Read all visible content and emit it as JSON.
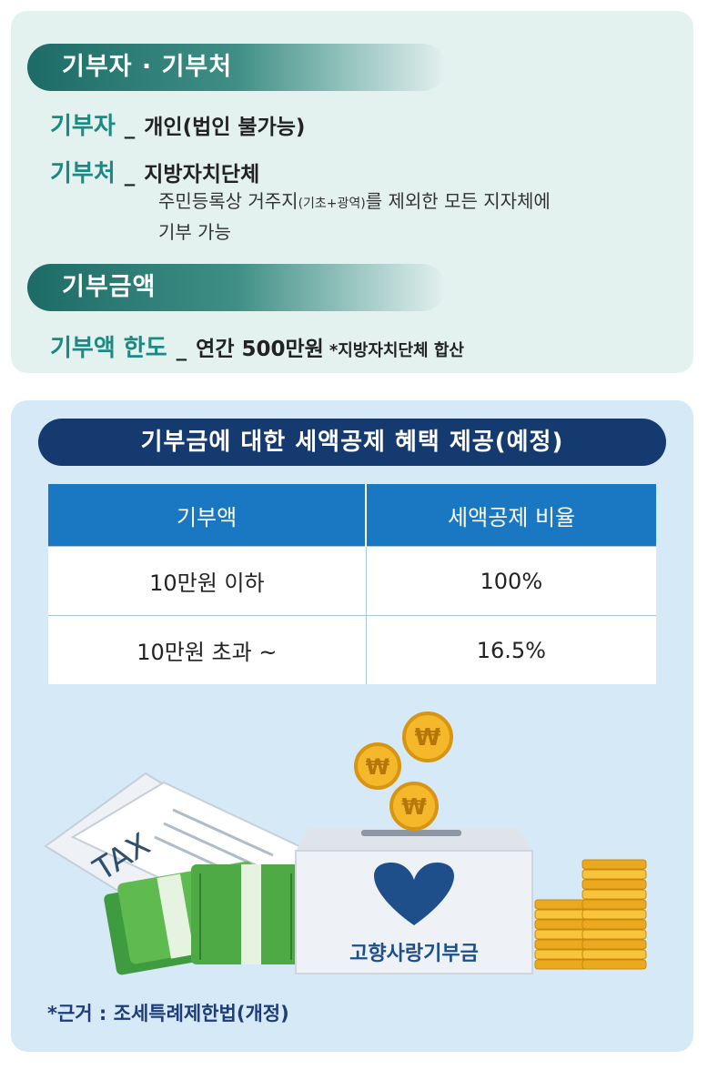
{
  "donor_section": {
    "title": "기부자 · 기부처",
    "donor_label": "기부자",
    "donor_value": "개인(법인 불가능)",
    "recipient_label": "기부처",
    "recipient_value": "지방자치단체",
    "recipient_desc_1_pre": "주민등록상 거주지",
    "recipient_desc_1_small": "(기초+광역)",
    "recipient_desc_1_post": "를 제외한 모든 지자체에",
    "recipient_desc_2": "기부 가능",
    "separator": "_"
  },
  "amount_section": {
    "title": "기부금액",
    "limit_label": "기부액 한도",
    "limit_value": "연간 500만원",
    "limit_note": "*지방자치단체 합산"
  },
  "tax_section": {
    "title": "기부금에 대한 세액공제 혜택 제공(예정)",
    "table": {
      "headers": [
        "기부액",
        "세액공제 비율"
      ],
      "rows": [
        [
          "10만원 이하",
          "100%"
        ],
        [
          "10만원 초과 ~",
          "16.5%"
        ]
      ]
    },
    "illustration": {
      "paper_text": "TAX",
      "coin_symbol": "₩",
      "box_label": "고향사랑기부금"
    },
    "basis": "*근거 : 조세특례제한법(개정)"
  },
  "colors": {
    "green_accent": "#1c8a83",
    "navy_pill": "#153a70",
    "table_header": "#1a78c2"
  }
}
